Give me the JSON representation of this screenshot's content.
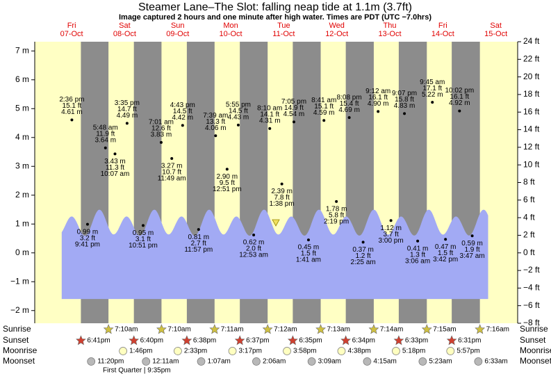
{
  "chart_data": {
    "type": "tide",
    "title": "Steamer Lane–The Slot: falling  neap tide at 1.1m (3.7ft)",
    "subtitle": "Image captured 2 hours and one minute after high water. Times are PDT (UTC −7.0hrs)",
    "ylim": [
      -2.44,
      7.32
    ],
    "yticks": [
      {
        "value": -2,
        "label": "−2 m"
      },
      {
        "value": -1,
        "label": "−1 m"
      },
      {
        "value": 0,
        "label": "0 m"
      },
      {
        "value": 1,
        "label": "1 m"
      },
      {
        "value": 2,
        "label": "2 m"
      },
      {
        "value": 3,
        "label": "3 m"
      },
      {
        "value": 4,
        "label": "4 m"
      },
      {
        "value": 5,
        "label": "5 m"
      },
      {
        "value": 6,
        "label": "6 m"
      },
      {
        "value": 7,
        "label": "7 m"
      }
    ],
    "y2lim": [
      -8,
      24
    ],
    "y2ticks": [
      {
        "value": -8,
        "label": "−8 ft"
      },
      {
        "value": -6,
        "label": "−6 ft"
      },
      {
        "value": -4,
        "label": "−4 ft"
      },
      {
        "value": -2,
        "label": "−2 ft"
      },
      {
        "value": 0,
        "label": "0 ft"
      },
      {
        "value": 2,
        "label": "2 ft"
      },
      {
        "value": 4,
        "label": "4 ft"
      },
      {
        "value": 6,
        "label": "6 ft"
      },
      {
        "value": 8,
        "label": "8 ft"
      },
      {
        "value": 10,
        "label": "10 ft"
      },
      {
        "value": 12,
        "label": "12 ft"
      },
      {
        "value": 14,
        "label": "14 ft"
      },
      {
        "value": 16,
        "label": "16 ft"
      },
      {
        "value": 18,
        "label": "18 ft"
      },
      {
        "value": 20,
        "label": "20 ft"
      },
      {
        "value": 22,
        "label": "22 ft"
      },
      {
        "value": 24,
        "label": "24 ft"
      }
    ],
    "rows": {
      "sunrise": "Sunrise",
      "sunset": "Sunset",
      "moonrise": "Moonrise",
      "moonset": "Moonset"
    },
    "moon_phase": "First Quarter | 9:35pm",
    "days": [
      {
        "weekday": "Fri",
        "date": "07-Oct",
        "sunset": "6:41pm",
        "moonset": "11:20pm",
        "tides": [
          {
            "kind": "high",
            "time": "2:36 pm",
            "ft": 15.1,
            "ft_label": "15.1 ft",
            "m": 4.61,
            "m_label": "4.61 m"
          },
          {
            "kind": "low",
            "time": "9:41 pm",
            "ft": 3.2,
            "ft_label": "3.2 ft",
            "m": 0.99,
            "m_label": "0.99 m"
          }
        ]
      },
      {
        "weekday": "Sat",
        "date": "08-Oct",
        "sunrise": "7:10am",
        "sunset": "6:40pm",
        "moonrise": "1:46pm",
        "tides": [
          {
            "kind": "high",
            "time": "5:48 am",
            "ft": 11.9,
            "ft_label": "11.9 ft",
            "m": 3.64,
            "m_label": "3.64 m"
          },
          {
            "kind": "low",
            "time": "10:07 am",
            "ft": 11.3,
            "ft_label": "11.3 ft",
            "m": 3.43,
            "m_label": "3.43 m"
          },
          {
            "kind": "high",
            "time": "3:35 pm",
            "ft": 14.7,
            "ft_label": "14.7 ft",
            "m": 4.49,
            "m_label": "4.49 m"
          },
          {
            "kind": "low",
            "time": "10:51 pm",
            "ft": 3.1,
            "ft_label": "3.1 ft",
            "m": 0.95,
            "m_label": "0.95 m"
          }
        ]
      },
      {
        "weekday": "Sun",
        "date": "09-Oct",
        "sunrise": "7:10am",
        "sunset": "6:38pm",
        "moonrise": "2:33pm",
        "moonset": "12:11am",
        "tides": [
          {
            "kind": "high",
            "time": "7:01 am",
            "ft": 12.6,
            "ft_label": "12.6 ft",
            "m": 3.83,
            "m_label": "3.83 m"
          },
          {
            "kind": "low",
            "time": "11:49 am",
            "ft": 10.7,
            "ft_label": "10.7 ft",
            "m": 3.27,
            "m_label": "3.27 m"
          },
          {
            "kind": "high",
            "time": "4:43 pm",
            "ft": 14.5,
            "ft_label": "14.5 ft",
            "m": 4.42,
            "m_label": "4.42 m"
          },
          {
            "kind": "low",
            "time": "11:57 pm",
            "ft": 2.7,
            "ft_label": "2.7 ft",
            "m": 0.81,
            "m_label": "0.81 m"
          }
        ]
      },
      {
        "weekday": "Mon",
        "date": "10-Oct",
        "sunrise": "7:11am",
        "sunset": "6:37pm",
        "moonrise": "3:17pm",
        "moonset": "1:07am",
        "tides": [
          {
            "kind": "high",
            "time": "7:39 am",
            "ft": 13.3,
            "ft_label": "13.3 ft",
            "m": 4.06,
            "m_label": "4.06 m"
          },
          {
            "kind": "low",
            "time": "12:51 pm",
            "ft": 9.5,
            "ft_label": "9.5 ft",
            "m": 2.9,
            "m_label": "2.90 m"
          },
          {
            "kind": "high",
            "time": "5:55 pm",
            "ft": 14.5,
            "ft_label": "14.5 ft",
            "m": 4.43,
            "m_label": "4.43 m"
          }
        ]
      },
      {
        "weekday": "Tue",
        "date": "11-Oct",
        "sunrise": "7:12am",
        "sunset": "6:35pm",
        "moonrise": "3:58pm",
        "moonset": "2:06am",
        "tides": [
          {
            "kind": "low",
            "time": "12:53 am",
            "ft": 2.0,
            "ft_label": "2.0 ft",
            "m": 0.62,
            "m_label": "0.62 m"
          },
          {
            "kind": "high",
            "time": "8:10 am",
            "ft": 14.1,
            "ft_label": "14.1 ft",
            "m": 4.31,
            "m_label": "4.31 m"
          },
          {
            "kind": "low",
            "time": "1:38 pm",
            "ft": 7.8,
            "ft_label": "7.8 ft",
            "m": 2.39,
            "m_label": "2.39 m"
          },
          {
            "kind": "high",
            "time": "7:05 pm",
            "ft": 14.9,
            "ft_label": "14.9 ft",
            "m": 4.54,
            "m_label": "4.54 m"
          }
        ]
      },
      {
        "weekday": "Wed",
        "date": "12-Oct",
        "sunrise": "7:13am",
        "sunset": "6:34pm",
        "moonrise": "4:38pm",
        "moonset": "3:09am",
        "tides": [
          {
            "kind": "low",
            "time": "1:41 am",
            "ft": 1.5,
            "ft_label": "1.5 ft",
            "m": 0.45,
            "m_label": "0.45 m"
          },
          {
            "kind": "high",
            "time": "8:41 am",
            "ft": 15.1,
            "ft_label": "15.1 ft",
            "m": 4.59,
            "m_label": "4.59 m"
          },
          {
            "kind": "low",
            "time": "2:19 pm",
            "ft": 5.8,
            "ft_label": "5.8 ft",
            "m": 1.78,
            "m_label": "1.78 m"
          },
          {
            "kind": "high",
            "time": "8:08 pm",
            "ft": 15.4,
            "ft_label": "15.4 ft",
            "m": 4.69,
            "m_label": "4.69 m"
          }
        ]
      },
      {
        "weekday": "Thu",
        "date": "13-Oct",
        "sunrise": "7:14am",
        "sunset": "6:33pm",
        "moonrise": "5:18pm",
        "moonset": "4:15am",
        "tides": [
          {
            "kind": "low",
            "time": "2:25 am",
            "ft": 1.2,
            "ft_label": "1.2 ft",
            "m": 0.37,
            "m_label": "0.37 m"
          },
          {
            "kind": "high",
            "time": "9:12 am",
            "ft": 16.1,
            "ft_label": "16.1 ft",
            "m": 4.9,
            "m_label": "4.90 m"
          },
          {
            "kind": "low",
            "time": "3:00 pm",
            "ft": 3.7,
            "ft_label": "3.7 ft",
            "m": 1.12,
            "m_label": "1.12 m"
          },
          {
            "kind": "high",
            "time": "9:07 pm",
            "ft": 15.8,
            "ft_label": "15.8 ft",
            "m": 4.83,
            "m_label": "4.83 m"
          }
        ]
      },
      {
        "weekday": "Fri",
        "date": "14-Oct",
        "sunrise": "7:15am",
        "sunset": "6:31pm",
        "moonrise": "5:57pm",
        "moonset": "5:23am",
        "tides": [
          {
            "kind": "low",
            "time": "3:06 am",
            "ft": 1.3,
            "ft_label": "1.3 ft",
            "m": 0.41,
            "m_label": "0.41 m"
          },
          {
            "kind": "high",
            "time": "9:45 am",
            "ft": 17.1,
            "ft_label": "17.1 ft",
            "m": 5.22,
            "m_label": "5.22 m"
          },
          {
            "kind": "low",
            "time": "3:42 pm",
            "ft": 1.5,
            "ft_label": "1.5 ft",
            "m": 0.47,
            "m_label": "0.47 m"
          },
          {
            "kind": "high",
            "time": "10:02 pm",
            "ft": 16.1,
            "ft_label": "16.1 ft",
            "m": 4.92,
            "m_label": "4.92 m"
          }
        ]
      },
      {
        "weekday": "Sat",
        "date": "15-Oct",
        "sunrise": "7:16am",
        "moonset": "6:33am",
        "tides": [
          {
            "kind": "low",
            "time": "3:47 am",
            "ft": 1.9,
            "ft_label": "1.9 ft",
            "m": 0.59,
            "m_label": "0.59 m"
          }
        ]
      }
    ]
  }
}
